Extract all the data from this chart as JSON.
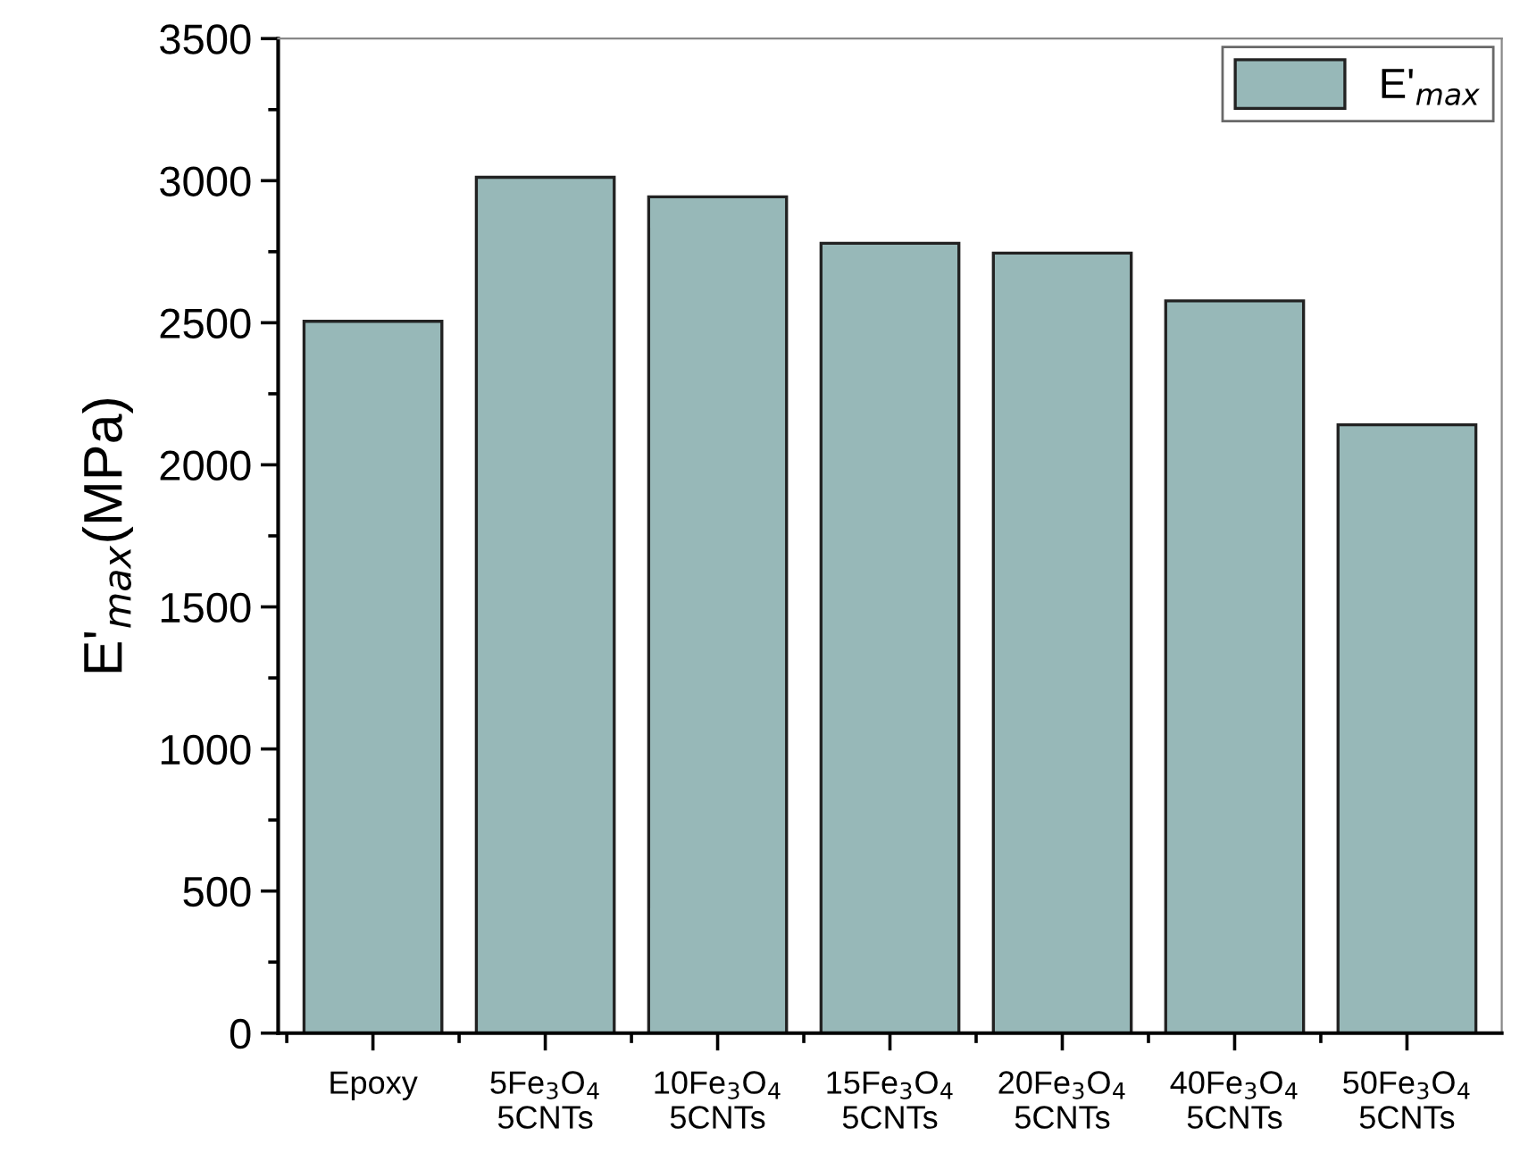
{
  "chart_data": {
    "type": "bar",
    "ylabel": "E'$_{max}$(MPa)",
    "categories": [
      "Epoxy",
      "5Fe$_{3}$O$_{4}$\n5CNTs",
      "10Fe$_{3}$O$_{4}$\n5CNTs",
      "15Fe$_{3}$O$_{4}$\n5CNTs",
      "20Fe$_{3}$O$_{4}$\n5CNTs",
      "40Fe$_{3}$O$_{4}$\n5CNTs",
      "50Fe$_{3}$O$_{4}$\n5CNTs"
    ],
    "series": [
      {
        "name": "E'$_{max}$",
        "color": "#97b8b8",
        "values": [
          2505,
          3012,
          2943,
          2780,
          2745,
          2577,
          2141
        ]
      }
    ],
    "ylim": [
      0,
      3500
    ],
    "yticks": [
      0,
      500,
      1000,
      1500,
      2000,
      2500,
      3000,
      3500
    ],
    "grid": false,
    "legend": "top right"
  }
}
